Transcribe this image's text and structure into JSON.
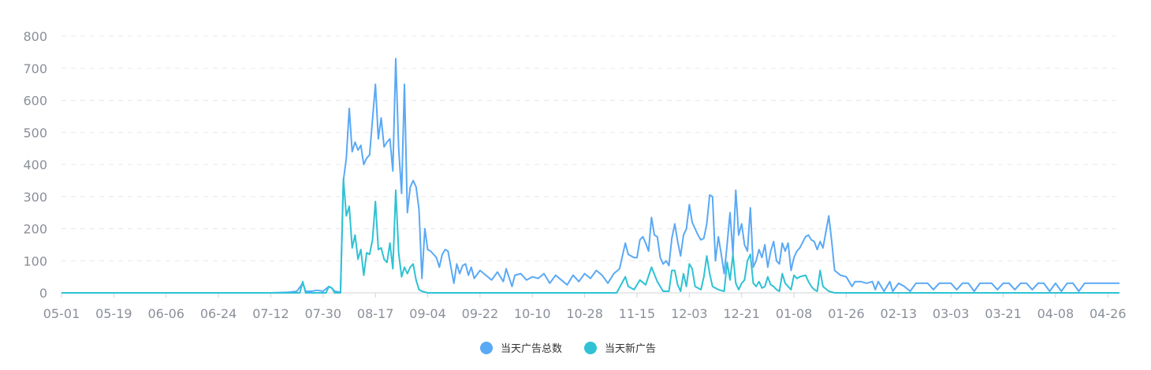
{
  "chart_data": {
    "type": "line",
    "title": "",
    "xlabel": "",
    "ylabel": "",
    "ylim": [
      0,
      800
    ],
    "y_ticks": [
      0,
      100,
      200,
      300,
      400,
      500,
      600,
      700,
      800
    ],
    "x_tick_labels": [
      "05-01",
      "05-19",
      "06-06",
      "06-24",
      "07-12",
      "07-30",
      "08-17",
      "09-04",
      "09-22",
      "10-10",
      "10-28",
      "11-15",
      "12-03",
      "12-21",
      "01-08",
      "01-26",
      "02-13",
      "03-03",
      "03-21",
      "04-08",
      "04-26"
    ],
    "grid": "horizontal-dashed",
    "legend_position": "bottom-center",
    "series": [
      {
        "name": "当天广告总数",
        "color": "#5aa9f5",
        "points": [
          [
            "05-01",
            0
          ],
          [
            "07-12",
            0
          ],
          [
            "07-18",
            2
          ],
          [
            "07-21",
            5
          ],
          [
            "07-23",
            30
          ],
          [
            "07-24",
            5
          ],
          [
            "07-26",
            5
          ],
          [
            "07-28",
            8
          ],
          [
            "07-30",
            5
          ],
          [
            "08-01",
            20
          ],
          [
            "08-02",
            15
          ],
          [
            "08-03",
            5
          ],
          [
            "08-05",
            2
          ],
          [
            "08-06",
            350
          ],
          [
            "08-07",
            420
          ],
          [
            "08-08",
            575
          ],
          [
            "08-09",
            440
          ],
          [
            "08-10",
            470
          ],
          [
            "08-11",
            445
          ],
          [
            "08-12",
            460
          ],
          [
            "08-13",
            400
          ],
          [
            "08-14",
            420
          ],
          [
            "08-15",
            430
          ],
          [
            "08-17",
            650
          ],
          [
            "08-18",
            480
          ],
          [
            "08-19",
            545
          ],
          [
            "08-20",
            455
          ],
          [
            "08-21",
            470
          ],
          [
            "08-22",
            480
          ],
          [
            "08-23",
            380
          ],
          [
            "08-24",
            730
          ],
          [
            "08-25",
            450
          ],
          [
            "08-26",
            310
          ],
          [
            "08-27",
            650
          ],
          [
            "08-28",
            250
          ],
          [
            "08-29",
            330
          ],
          [
            "08-30",
            350
          ],
          [
            "08-31",
            330
          ],
          [
            "09-01",
            260
          ],
          [
            "09-02",
            45
          ],
          [
            "09-03",
            200
          ],
          [
            "09-04",
            135
          ],
          [
            "09-05",
            130
          ],
          [
            "09-06",
            120
          ],
          [
            "09-07",
            110
          ],
          [
            "09-08",
            80
          ],
          [
            "09-09",
            120
          ],
          [
            "09-10",
            135
          ],
          [
            "09-11",
            130
          ],
          [
            "09-12",
            80
          ],
          [
            "09-13",
            30
          ],
          [
            "09-14",
            90
          ],
          [
            "09-15",
            60
          ],
          [
            "09-16",
            85
          ],
          [
            "09-17",
            90
          ],
          [
            "09-18",
            55
          ],
          [
            "09-19",
            80
          ],
          [
            "09-20",
            45
          ],
          [
            "09-22",
            70
          ],
          [
            "09-24",
            55
          ],
          [
            "09-26",
            40
          ],
          [
            "09-28",
            65
          ],
          [
            "09-30",
            35
          ],
          [
            "10-01",
            75
          ],
          [
            "10-03",
            20
          ],
          [
            "10-04",
            55
          ],
          [
            "10-06",
            60
          ],
          [
            "10-08",
            40
          ],
          [
            "10-10",
            50
          ],
          [
            "10-12",
            45
          ],
          [
            "10-14",
            60
          ],
          [
            "10-16",
            30
          ],
          [
            "10-18",
            55
          ],
          [
            "10-20",
            40
          ],
          [
            "10-22",
            25
          ],
          [
            "10-24",
            55
          ],
          [
            "10-26",
            35
          ],
          [
            "10-28",
            60
          ],
          [
            "10-30",
            45
          ],
          [
            "11-01",
            70
          ],
          [
            "11-03",
            55
          ],
          [
            "11-05",
            30
          ],
          [
            "11-07",
            60
          ],
          [
            "11-09",
            75
          ],
          [
            "11-11",
            155
          ],
          [
            "11-12",
            120
          ],
          [
            "11-14",
            110
          ],
          [
            "11-15",
            110
          ],
          [
            "11-16",
            165
          ],
          [
            "11-17",
            175
          ],
          [
            "11-18",
            155
          ],
          [
            "11-19",
            130
          ],
          [
            "11-20",
            235
          ],
          [
            "11-21",
            180
          ],
          [
            "11-22",
            175
          ],
          [
            "11-23",
            110
          ],
          [
            "11-24",
            90
          ],
          [
            "11-25",
            100
          ],
          [
            "11-26",
            85
          ],
          [
            "11-27",
            170
          ],
          [
            "11-28",
            215
          ],
          [
            "11-29",
            160
          ],
          [
            "11-30",
            115
          ],
          [
            "12-01",
            180
          ],
          [
            "12-02",
            200
          ],
          [
            "12-03",
            275
          ],
          [
            "12-04",
            220
          ],
          [
            "12-05",
            200
          ],
          [
            "12-06",
            180
          ],
          [
            "12-07",
            165
          ],
          [
            "12-08",
            170
          ],
          [
            "12-09",
            215
          ],
          [
            "12-10",
            305
          ],
          [
            "12-11",
            300
          ],
          [
            "12-12",
            100
          ],
          [
            "12-13",
            175
          ],
          [
            "12-14",
            120
          ],
          [
            "12-15",
            60
          ],
          [
            "12-16",
            150
          ],
          [
            "12-17",
            250
          ],
          [
            "12-18",
            120
          ],
          [
            "12-19",
            320
          ],
          [
            "12-20",
            180
          ],
          [
            "12-21",
            215
          ],
          [
            "12-22",
            150
          ],
          [
            "12-23",
            130
          ],
          [
            "12-24",
            265
          ],
          [
            "12-25",
            80
          ],
          [
            "12-26",
            100
          ],
          [
            "12-27",
            135
          ],
          [
            "12-28",
            110
          ],
          [
            "12-29",
            150
          ],
          [
            "12-30",
            80
          ],
          [
            "12-31",
            130
          ],
          [
            "01-01",
            160
          ],
          [
            "01-02",
            100
          ],
          [
            "01-03",
            90
          ],
          [
            "01-04",
            155
          ],
          [
            "01-05",
            130
          ],
          [
            "01-06",
            155
          ],
          [
            "01-07",
            70
          ],
          [
            "01-08",
            110
          ],
          [
            "01-09",
            130
          ],
          [
            "01-10",
            140
          ],
          [
            "01-12",
            175
          ],
          [
            "01-13",
            180
          ],
          [
            "01-14",
            165
          ],
          [
            "01-15",
            160
          ],
          [
            "01-16",
            135
          ],
          [
            "01-17",
            160
          ],
          [
            "01-18",
            140
          ],
          [
            "01-19",
            190
          ],
          [
            "01-20",
            240
          ],
          [
            "01-21",
            160
          ],
          [
            "01-22",
            70
          ],
          [
            "01-24",
            55
          ],
          [
            "01-26",
            50
          ],
          [
            "01-27",
            35
          ],
          [
            "01-28",
            20
          ],
          [
            "01-29",
            35
          ],
          [
            "01-31",
            35
          ],
          [
            "02-02",
            30
          ],
          [
            "02-04",
            35
          ],
          [
            "02-05",
            10
          ],
          [
            "02-06",
            35
          ],
          [
            "02-07",
            20
          ],
          [
            "02-08",
            5
          ],
          [
            "02-10",
            35
          ],
          [
            "02-11",
            5
          ],
          [
            "02-13",
            30
          ],
          [
            "02-15",
            20
          ],
          [
            "02-17",
            5
          ],
          [
            "02-19",
            30
          ],
          [
            "02-21",
            30
          ],
          [
            "02-23",
            30
          ],
          [
            "02-25",
            10
          ],
          [
            "02-27",
            30
          ],
          [
            "03-01",
            30
          ],
          [
            "03-03",
            30
          ],
          [
            "03-05",
            10
          ],
          [
            "03-07",
            30
          ],
          [
            "03-09",
            30
          ],
          [
            "03-11",
            5
          ],
          [
            "03-13",
            30
          ],
          [
            "03-15",
            30
          ],
          [
            "03-17",
            30
          ],
          [
            "03-19",
            10
          ],
          [
            "03-21",
            30
          ],
          [
            "03-23",
            30
          ],
          [
            "03-25",
            10
          ],
          [
            "03-27",
            30
          ],
          [
            "03-29",
            30
          ],
          [
            "03-31",
            10
          ],
          [
            "04-02",
            30
          ],
          [
            "04-04",
            30
          ],
          [
            "04-06",
            5
          ],
          [
            "04-08",
            30
          ],
          [
            "04-10",
            5
          ],
          [
            "04-12",
            30
          ],
          [
            "04-14",
            30
          ],
          [
            "04-16",
            5
          ],
          [
            "04-18",
            30
          ],
          [
            "04-20",
            30
          ],
          [
            "04-22",
            30
          ],
          [
            "04-26",
            30
          ],
          [
            "04-30",
            30
          ]
        ]
      },
      {
        "name": "当天新广告",
        "color": "#2ec2d4",
        "points": [
          [
            "05-01",
            0
          ],
          [
            "07-22",
            0
          ],
          [
            "07-23",
            35
          ],
          [
            "07-24",
            0
          ],
          [
            "07-31",
            0
          ],
          [
            "08-01",
            20
          ],
          [
            "08-02",
            15
          ],
          [
            "08-03",
            0
          ],
          [
            "08-05",
            0
          ],
          [
            "08-06",
            355
          ],
          [
            "08-07",
            240
          ],
          [
            "08-08",
            270
          ],
          [
            "08-09",
            140
          ],
          [
            "08-10",
            180
          ],
          [
            "08-11",
            105
          ],
          [
            "08-12",
            135
          ],
          [
            "08-13",
            55
          ],
          [
            "08-14",
            125
          ],
          [
            "08-15",
            120
          ],
          [
            "08-16",
            165
          ],
          [
            "08-17",
            285
          ],
          [
            "08-18",
            135
          ],
          [
            "08-19",
            140
          ],
          [
            "08-20",
            105
          ],
          [
            "08-21",
            95
          ],
          [
            "08-22",
            155
          ],
          [
            "08-23",
            75
          ],
          [
            "08-24",
            320
          ],
          [
            "08-25",
            125
          ],
          [
            "08-26",
            50
          ],
          [
            "08-27",
            80
          ],
          [
            "08-28",
            60
          ],
          [
            "08-29",
            80
          ],
          [
            "08-30",
            90
          ],
          [
            "08-31",
            40
          ],
          [
            "09-01",
            10
          ],
          [
            "09-02",
            5
          ],
          [
            "09-04",
            0
          ],
          [
            "09-14",
            0
          ],
          [
            "11-08",
            0
          ],
          [
            "11-11",
            50
          ],
          [
            "11-12",
            20
          ],
          [
            "11-14",
            10
          ],
          [
            "11-16",
            40
          ],
          [
            "11-18",
            25
          ],
          [
            "11-20",
            80
          ],
          [
            "11-22",
            35
          ],
          [
            "11-24",
            5
          ],
          [
            "11-26",
            5
          ],
          [
            "11-27",
            70
          ],
          [
            "11-28",
            70
          ],
          [
            "11-29",
            25
          ],
          [
            "11-30",
            5
          ],
          [
            "12-01",
            60
          ],
          [
            "12-02",
            20
          ],
          [
            "12-03",
            90
          ],
          [
            "12-04",
            75
          ],
          [
            "12-05",
            20
          ],
          [
            "12-06",
            15
          ],
          [
            "12-07",
            10
          ],
          [
            "12-08",
            50
          ],
          [
            "12-09",
            115
          ],
          [
            "12-10",
            60
          ],
          [
            "12-11",
            20
          ],
          [
            "12-13",
            10
          ],
          [
            "12-15",
            5
          ],
          [
            "12-16",
            95
          ],
          [
            "12-17",
            40
          ],
          [
            "12-18",
            120
          ],
          [
            "12-19",
            30
          ],
          [
            "12-20",
            10
          ],
          [
            "12-21",
            30
          ],
          [
            "12-22",
            40
          ],
          [
            "12-23",
            100
          ],
          [
            "12-24",
            120
          ],
          [
            "12-25",
            30
          ],
          [
            "12-26",
            20
          ],
          [
            "12-27",
            35
          ],
          [
            "12-28",
            15
          ],
          [
            "12-29",
            20
          ],
          [
            "12-30",
            50
          ],
          [
            "12-31",
            25
          ],
          [
            "01-01",
            20
          ],
          [
            "01-02",
            10
          ],
          [
            "01-03",
            5
          ],
          [
            "01-04",
            60
          ],
          [
            "01-05",
            30
          ],
          [
            "01-06",
            20
          ],
          [
            "01-07",
            10
          ],
          [
            "01-08",
            55
          ],
          [
            "01-09",
            45
          ],
          [
            "01-10",
            50
          ],
          [
            "01-12",
            55
          ],
          [
            "01-13",
            35
          ],
          [
            "01-14",
            20
          ],
          [
            "01-15",
            10
          ],
          [
            "01-16",
            5
          ],
          [
            "01-17",
            70
          ],
          [
            "01-18",
            20
          ],
          [
            "01-20",
            5
          ],
          [
            "01-22",
            0
          ],
          [
            "04-30",
            0
          ]
        ]
      }
    ]
  }
}
